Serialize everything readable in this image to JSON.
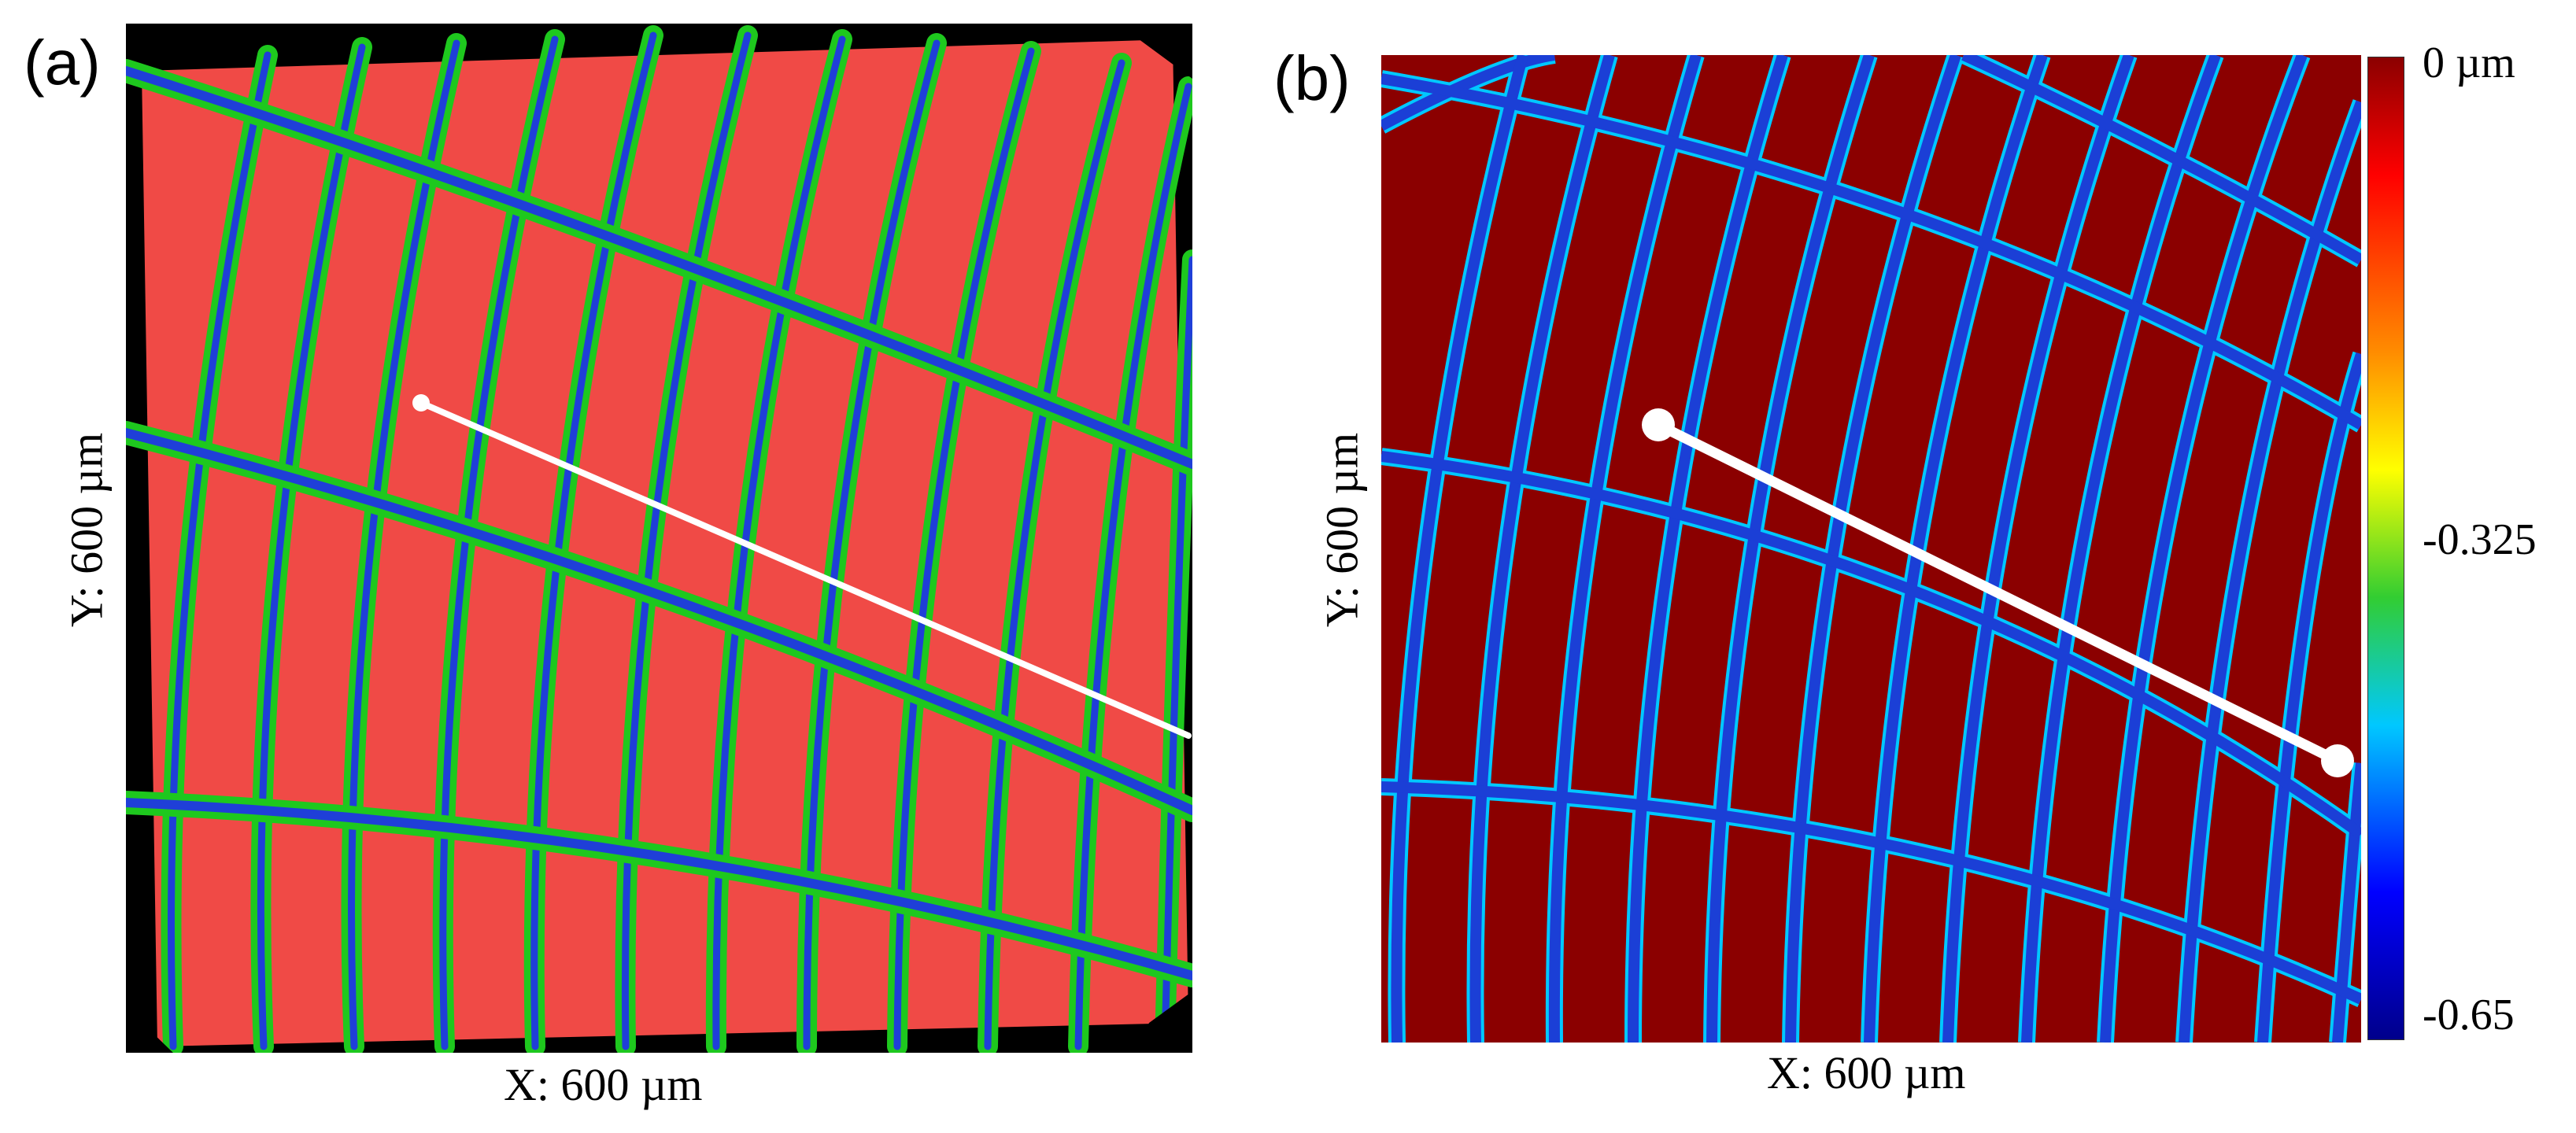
{
  "panel_a": {
    "label": "(a)",
    "x_axis_label": "X: 600 µm",
    "y_axis_label": "Y: 600 µm",
    "colors": {
      "background": "#000000",
      "surface": "#f04a46",
      "groove_edge": "#1ec81e",
      "groove_center": "#1f3fd8",
      "profile_line": "#ffffff"
    }
  },
  "panel_b": {
    "label": "(b)",
    "x_axis_label": "X: 600 µm",
    "y_axis_label": "Y: 600 µm",
    "colors": {
      "surface": "#8b0000",
      "groove": "#1b3fd6",
      "profile_line": "#ffffff"
    }
  },
  "colorbar": {
    "ticks": [
      "0 µm",
      "-0.325",
      "-0.65"
    ],
    "colors": [
      "#8b0000",
      "#ff0000",
      "#ffa500",
      "#ffff00",
      "#32cd32",
      "#00c8ff",
      "#0000ff",
      "#00008b"
    ]
  }
}
